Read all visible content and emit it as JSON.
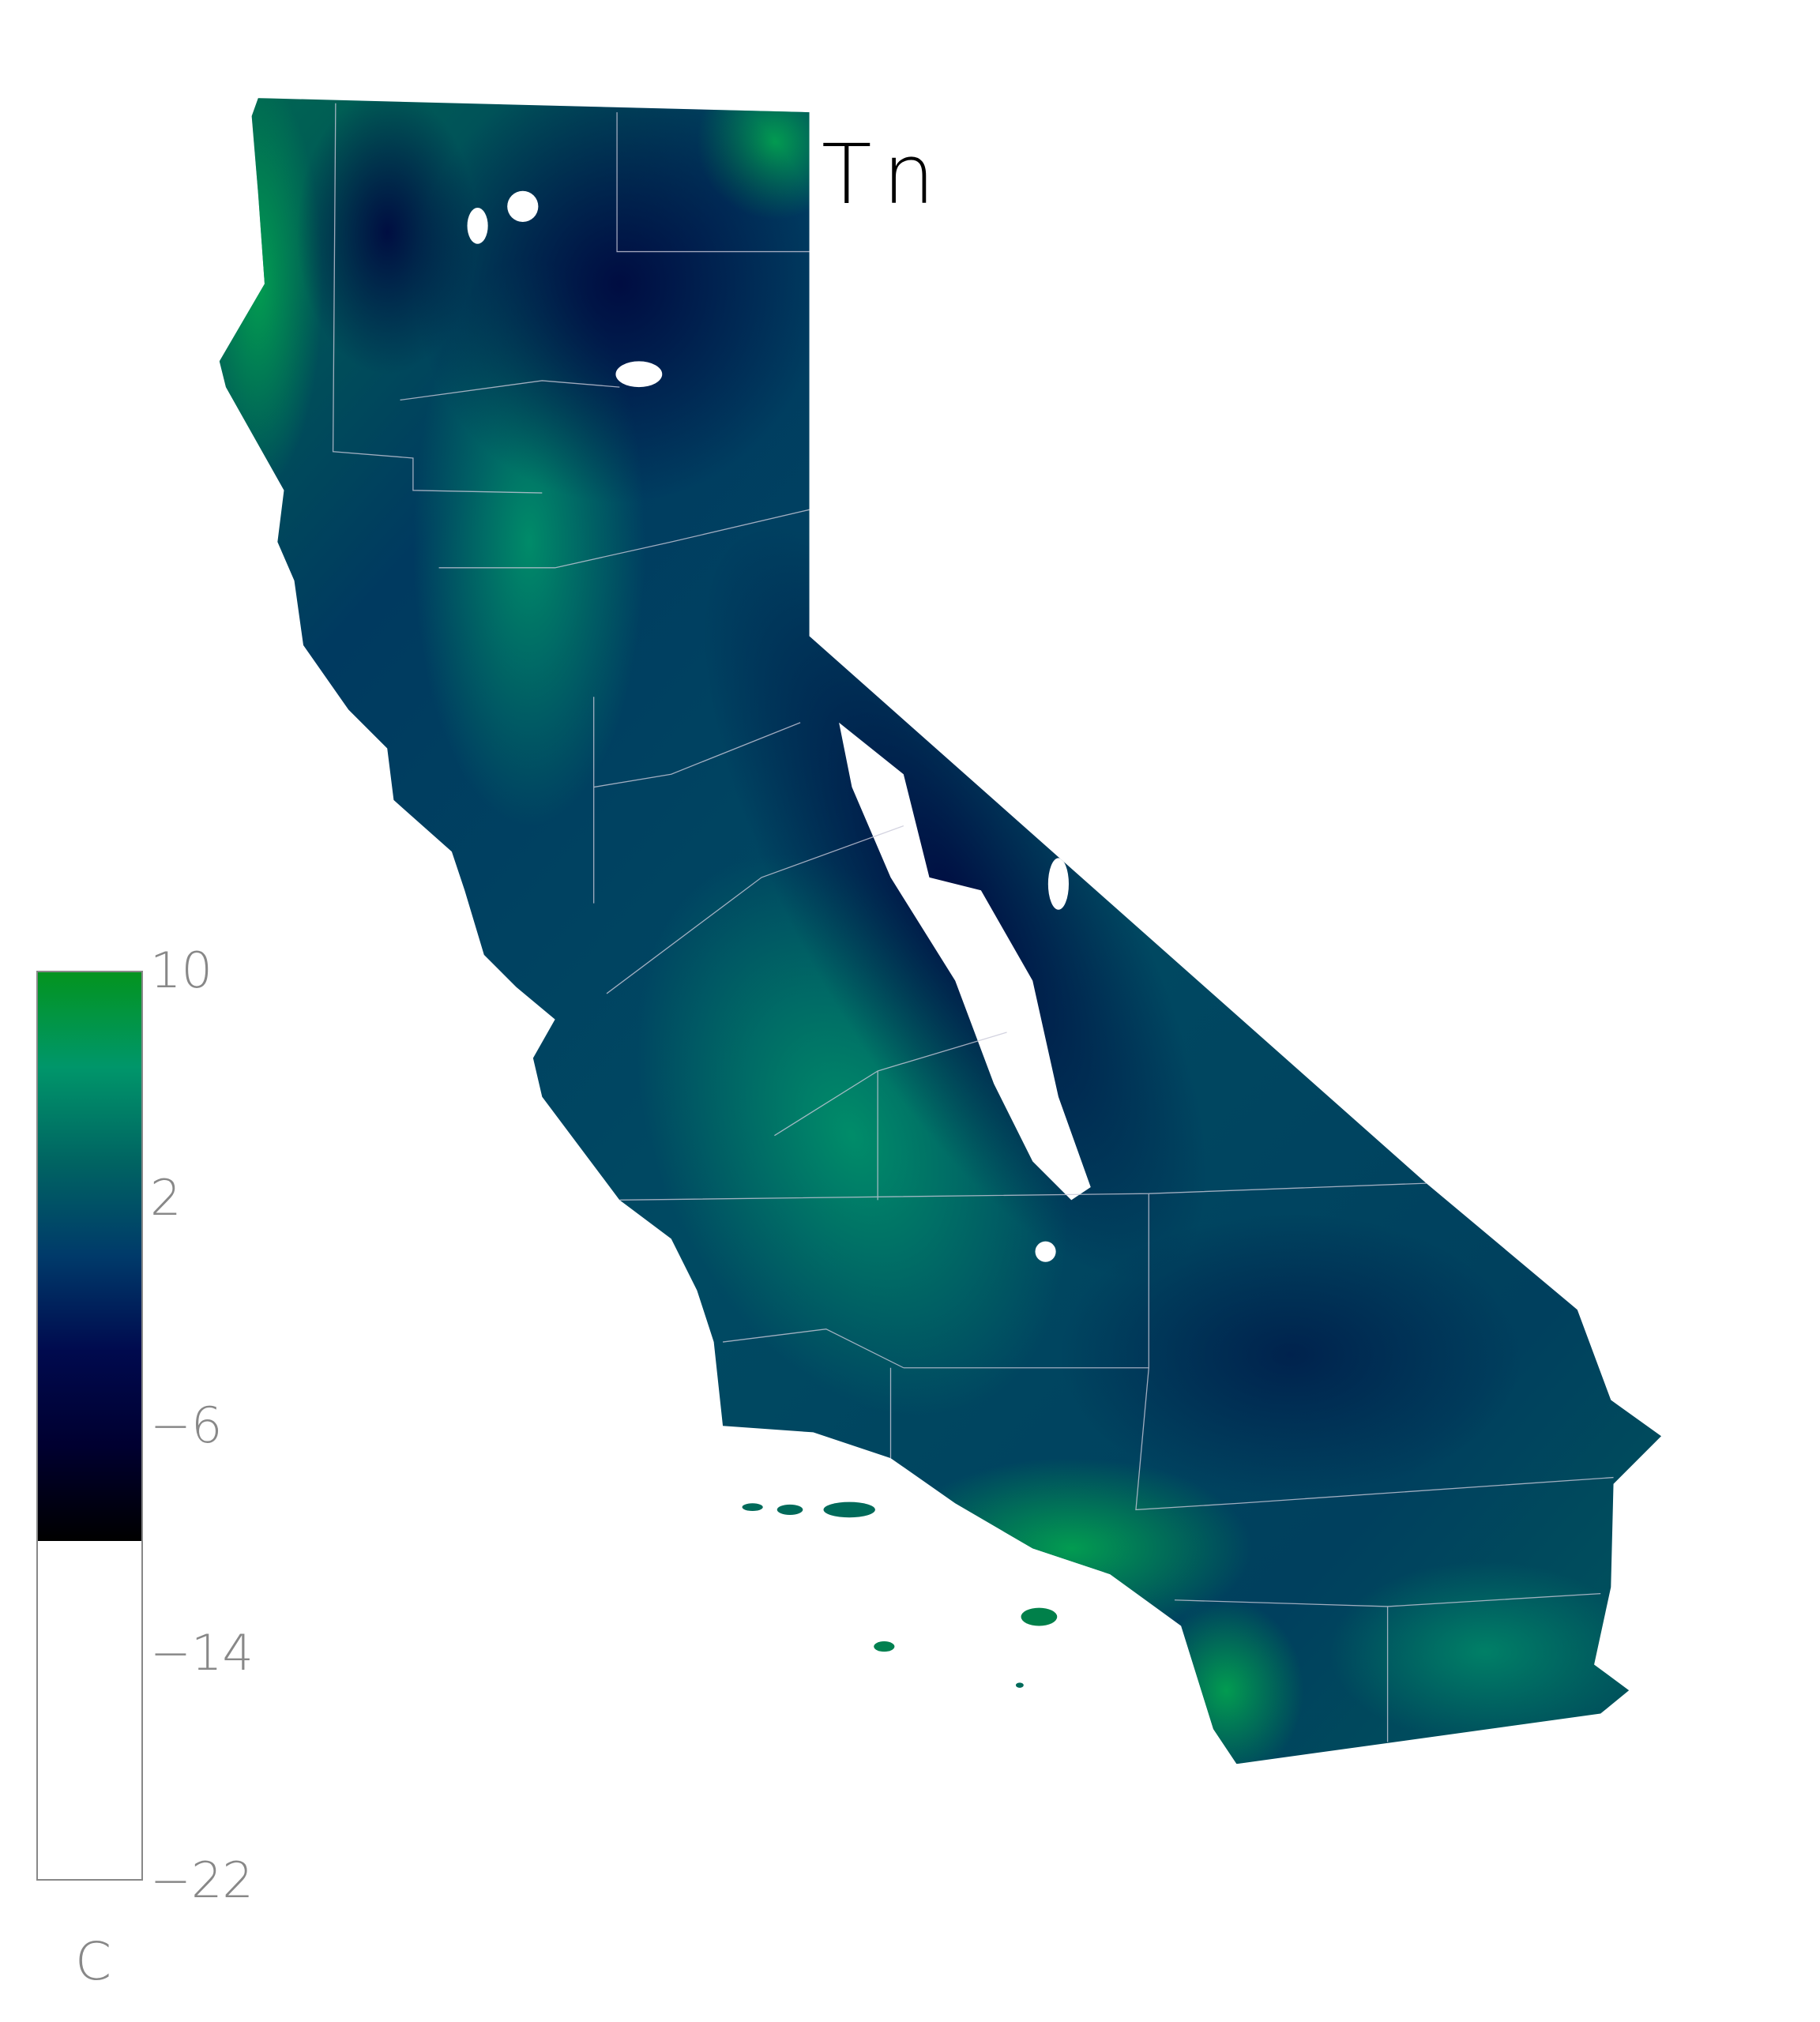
{
  "title": "Tn",
  "colorbar": {
    "unit": "C",
    "min": -22,
    "max": 10,
    "colored_range": [
      -10,
      10
    ],
    "below_range_color": "#ffffff",
    "ticks": [
      {
        "value": 10,
        "label": "10"
      },
      {
        "value": 2,
        "label": "2"
      },
      {
        "value": -6,
        "label": "−6"
      },
      {
        "value": -14,
        "label": "−14"
      },
      {
        "value": -22,
        "label": "−22"
      }
    ],
    "colors": [
      "#000000",
      "#000030",
      "#000a4e",
      "#003a6a",
      "#006462",
      "#00966a",
      "#03941f"
    ]
  },
  "map": {
    "region": "California",
    "variable": "Tn",
    "boundaries": "county lines"
  }
}
